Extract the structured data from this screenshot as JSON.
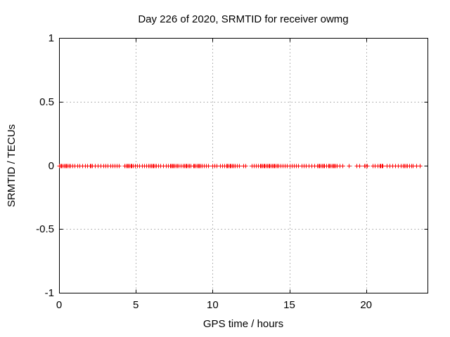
{
  "figure": {
    "background_color": "#ffffff",
    "border_color": "#000000",
    "grid_color": "#9e9e9e",
    "text_color": "#000000"
  },
  "chart_data": {
    "type": "scatter",
    "title": "Day 226 of 2020, SRMTID for receiver owmg",
    "xlabel": "GPS time / hours",
    "ylabel": "SRMTID / TECUs",
    "xlim": [
      0,
      24
    ],
    "ylim": [
      -1,
      1
    ],
    "xticks": [
      0,
      5,
      10,
      15,
      20
    ],
    "xtick_labels": [
      "0",
      "5",
      "10",
      "15",
      "20"
    ],
    "yticks": [
      -1,
      -0.5,
      0,
      0.5,
      1
    ],
    "ytick_labels": [
      "-1",
      "-0.5",
      "0",
      "0.5",
      "1"
    ],
    "grid": true,
    "grid_style": "dotted",
    "legend": "none",
    "series": [
      {
        "name": "SRMTID",
        "color": "#ff0000",
        "marker": "plus",
        "y_value": 0,
        "x_dense_runs": [
          [
            0.0,
            0.75
          ],
          [
            2.0,
            2.22
          ],
          [
            4.26,
            4.88
          ],
          [
            5.91,
            6.37
          ],
          [
            7.28,
            7.72
          ],
          [
            8.15,
            8.61
          ],
          [
            8.73,
            9.21
          ],
          [
            10.95,
            11.36
          ],
          [
            13.15,
            14.25
          ],
          [
            16.88,
            17.22
          ],
          [
            17.52,
            18.0
          ],
          [
            19.88,
            20.11
          ],
          [
            20.93,
            21.16
          ],
          [
            22.49,
            22.72
          ]
        ],
        "x_points": [
          0.87,
          1.01,
          1.19,
          1.33,
          1.51,
          1.69,
          1.83,
          2.34,
          2.52,
          2.7,
          2.89,
          3.02,
          3.16,
          3.34,
          3.48,
          3.62,
          3.76,
          3.89,
          4.95,
          5.08,
          5.22,
          5.41,
          5.54,
          5.68,
          5.82,
          6.46,
          6.6,
          6.78,
          6.96,
          7.1,
          7.24,
          7.79,
          7.93,
          8.06,
          9.3,
          9.44,
          9.57,
          9.71,
          9.99,
          10.12,
          10.26,
          10.49,
          10.63,
          10.76,
          10.9,
          11.45,
          11.59,
          11.73,
          12.0,
          12.14,
          12.55,
          12.69,
          12.83,
          12.96,
          13.1,
          14.29,
          14.43,
          14.57,
          14.7,
          14.84,
          15.03,
          15.16,
          15.3,
          15.44,
          15.57,
          15.8,
          15.94,
          16.08,
          16.26,
          16.45,
          16.63,
          16.81,
          17.27,
          17.41,
          18.09,
          18.28,
          18.46,
          18.87,
          19.37,
          19.56,
          20.43,
          20.57,
          20.75,
          20.89,
          21.34,
          21.53,
          21.71,
          21.89,
          22.08,
          22.26,
          22.4,
          22.81,
          22.95,
          23.04,
          23.27,
          23.5
        ]
      }
    ]
  }
}
